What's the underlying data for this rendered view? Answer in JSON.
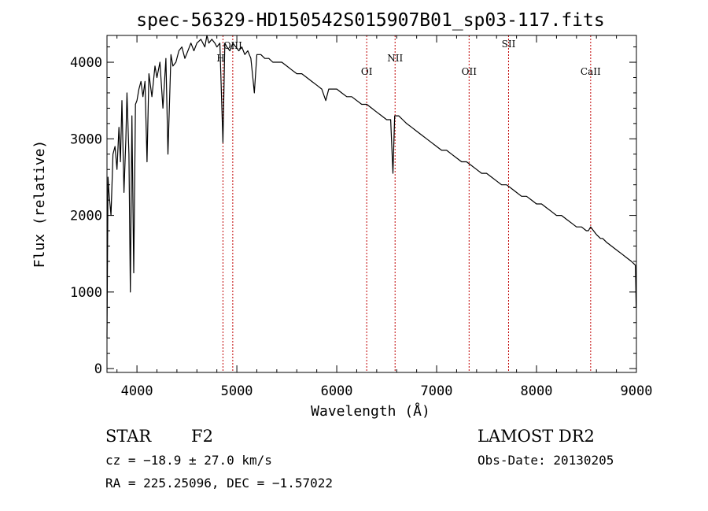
{
  "chart_data": {
    "type": "line",
    "title": "spec-56329-HD150542S015907B01_sp03-117.fits",
    "xlabel": "Wavelength (Å)",
    "ylabel": "Flux (relative)",
    "xlim": [
      3700,
      9000
    ],
    "ylim": [
      -50,
      4350
    ],
    "x_ticks": [
      4000,
      5000,
      6000,
      7000,
      8000,
      9000
    ],
    "y_ticks": [
      0,
      1000,
      2000,
      3000,
      4000
    ],
    "x_tick_labels": [
      "4000",
      "5000",
      "6000",
      "7000",
      "8000",
      "9000"
    ],
    "y_tick_labels": [
      "0",
      "1000",
      "2000",
      "3000",
      "4000"
    ],
    "spectrum_color": "#000000",
    "line_marker_color": "#c00000",
    "emission_lines": [
      {
        "name": "H",
        "wavelength": 4861
      },
      {
        "name": "OIII",
        "wavelength": 4959
      },
      {
        "name": "OI",
        "wavelength": 6300
      },
      {
        "name": "NII",
        "wavelength": 6584
      },
      {
        "name": "OII",
        "wavelength": 7325
      },
      {
        "name": "SII",
        "wavelength": 7720
      },
      {
        "name": "CaII",
        "wavelength": 8542
      }
    ],
    "series": [
      {
        "x": [
          3700,
          3710,
          3720,
          3740,
          3760,
          3780,
          3800,
          3820,
          3835,
          3850,
          3870,
          3889,
          3900,
          3920,
          3934,
          3950,
          3968,
          3985,
          4000,
          4020,
          4040,
          4060,
          4080,
          4101,
          4120,
          4150,
          4180,
          4200,
          4230,
          4260,
          4290,
          4310,
          4340,
          4360,
          4390,
          4420,
          4450,
          4480,
          4510,
          4540,
          4570,
          4600,
          4640,
          4680,
          4700,
          4720,
          4750,
          4780,
          4800,
          4830,
          4861,
          4880,
          4900,
          4930,
          4960,
          4990,
          5020,
          5050,
          5080,
          5110,
          5140,
          5160,
          5175,
          5200,
          5240,
          5280,
          5320,
          5360,
          5400,
          5450,
          5500,
          5550,
          5600,
          5650,
          5700,
          5750,
          5800,
          5850,
          5890,
          5920,
          5960,
          6000,
          6050,
          6100,
          6150,
          6200,
          6250,
          6300,
          6350,
          6400,
          6450,
          6500,
          6540,
          6563,
          6580,
          6620,
          6660,
          6700,
          6750,
          6800,
          6850,
          6900,
          6950,
          7000,
          7050,
          7100,
          7150,
          7200,
          7250,
          7300,
          7350,
          7400,
          7450,
          7500,
          7550,
          7600,
          7650,
          7700,
          7750,
          7800,
          7850,
          7900,
          7950,
          8000,
          8050,
          8100,
          8150,
          8200,
          8250,
          8300,
          8350,
          8400,
          8450,
          8498,
          8520,
          8542,
          8570,
          8600,
          8640,
          8662,
          8700,
          8750,
          8800,
          8850,
          8900,
          8950,
          8990,
          8998
        ],
        "y": [
          400,
          2500,
          2300,
          2000,
          2800,
          2900,
          2600,
          3150,
          2700,
          3500,
          2300,
          3000,
          3600,
          2800,
          1000,
          3300,
          1250,
          3450,
          3500,
          3650,
          3750,
          3550,
          3750,
          2700,
          3850,
          3550,
          3950,
          3800,
          4000,
          3400,
          4050,
          2800,
          4100,
          3950,
          4000,
          4150,
          4200,
          4050,
          4150,
          4250,
          4150,
          4250,
          4300,
          4200,
          4350,
          4250,
          4300,
          4250,
          4200,
          4250,
          2950,
          4250,
          4200,
          4150,
          4250,
          4200,
          4150,
          4200,
          4100,
          4150,
          4050,
          3800,
          3600,
          4100,
          4100,
          4050,
          4050,
          4000,
          4000,
          4000,
          3950,
          3900,
          3850,
          3850,
          3800,
          3750,
          3700,
          3650,
          3500,
          3650,
          3650,
          3650,
          3600,
          3550,
          3550,
          3500,
          3450,
          3450,
          3400,
          3350,
          3300,
          3250,
          3250,
          2550,
          3300,
          3300,
          3250,
          3200,
          3150,
          3100,
          3050,
          3000,
          2950,
          2900,
          2850,
          2850,
          2800,
          2750,
          2700,
          2700,
          2650,
          2600,
          2550,
          2550,
          2500,
          2450,
          2400,
          2400,
          2350,
          2300,
          2250,
          2250,
          2200,
          2150,
          2150,
          2100,
          2050,
          2000,
          2000,
          1950,
          1900,
          1850,
          1850,
          1800,
          1800,
          1850,
          1800,
          1750,
          1700,
          1700,
          1650,
          1600,
          1550,
          1500,
          1450,
          1400,
          1350,
          800
        ]
      }
    ],
    "annotations": {
      "object_class": "STAR",
      "subclass": "F2",
      "survey": "LAMOST DR2",
      "cz": "cz = −18.9 ± 27.0 km/s",
      "obs_date": "Obs-Date: 20130205",
      "coords": "RA = 225.25096, DEC =  −1.57022"
    }
  }
}
